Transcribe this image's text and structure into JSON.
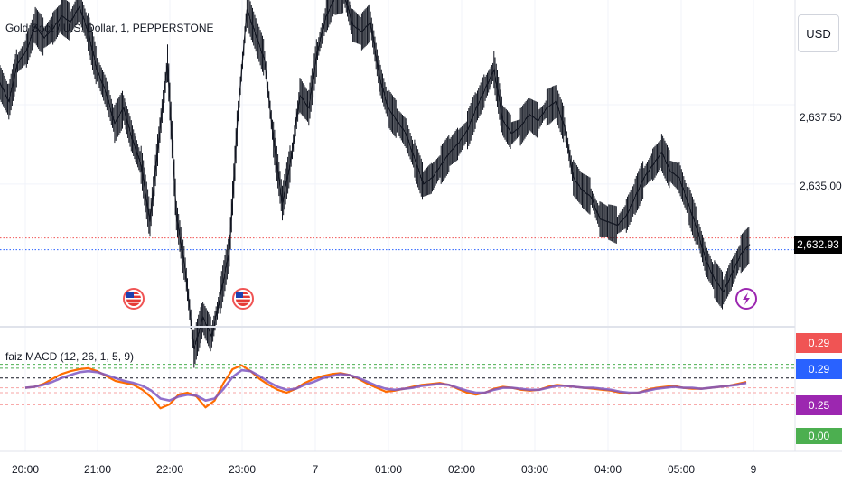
{
  "header": {
    "symbol_title": "Gold Spot / U.S. Dollar, 1, PEPPERSTONE",
    "currency_button": "USD"
  },
  "price_axis": {
    "labels": [
      "2,637.50",
      "2,635.00"
    ],
    "last_price": "2,632.93"
  },
  "indicator": {
    "title": "faiz MACD (12, 26, 1, 5, 9)",
    "badges": [
      {
        "text": "0.29",
        "color": "#f05454"
      },
      {
        "text": "0.29",
        "color": "#2962ff"
      },
      {
        "text": "0.25",
        "color": "#9c27b0"
      },
      {
        "text": "0.00",
        "color": "#4caf50"
      }
    ]
  },
  "time_axis": {
    "labels": [
      "20:00",
      "21:00",
      "22:00",
      "23:00",
      "7",
      "01:00",
      "02:00",
      "03:00",
      "04:00",
      "05:00",
      "9"
    ]
  },
  "chart_data": {
    "type": "line",
    "ylim": [
      2630.5,
      2640.8
    ],
    "price_ticks": [
      2637.5,
      2635.0
    ],
    "reference_lines": [
      {
        "value": 2633.3,
        "color": "#f05454"
      },
      {
        "value": 2632.93,
        "color": "#2962ff"
      }
    ],
    "series": [
      {
        "values": [
          2638.2,
          2637.6,
          2638.8,
          2639.2,
          2640.0,
          2639.6,
          2639.9,
          2640.3,
          2640.1,
          2640.6,
          2639.8,
          2638.6,
          2637.9,
          2636.9,
          2637.4,
          2636.4,
          2635.6,
          2633.8,
          2636.4,
          2638.8,
          2634.0,
          2632.3,
          2629.8,
          2630.8,
          2630.2,
          2631.5,
          2632.9,
          2637.3,
          2640.5,
          2639.7,
          2638.9,
          2636.4,
          2634.4,
          2635.8,
          2637.8,
          2637.4,
          2639.2,
          2640.3,
          2640.9,
          2641.0,
          2640.0,
          2639.8,
          2640.1,
          2638.4,
          2637.4,
          2637.0,
          2636.6,
          2635.8,
          2635.0,
          2635.2,
          2635.6,
          2636.0,
          2636.3,
          2636.7,
          2637.4,
          2638.0,
          2638.6,
          2637.0,
          2636.6,
          2636.8,
          2637.2,
          2637.0,
          2637.4,
          2637.6,
          2636.8,
          2635.2,
          2634.8,
          2634.6,
          2633.9,
          2633.8,
          2633.7,
          2634.0,
          2634.6,
          2635.2,
          2635.6,
          2636.0,
          2635.4,
          2635.2,
          2634.4,
          2633.6,
          2632.6,
          2632.0,
          2631.6,
          2632.2,
          2632.8,
          2633.1
        ],
        "color": "#131722"
      },
      {
        "name": "MACD",
        "values": [
          0.05,
          0.06,
          0.09,
          0.14,
          0.19,
          0.22,
          0.24,
          0.25,
          0.22,
          0.17,
          0.12,
          0.1,
          0.08,
          0.03,
          -0.05,
          -0.16,
          -0.12,
          -0.02,
          0.0,
          -0.04,
          -0.15,
          -0.08,
          0.1,
          0.24,
          0.28,
          0.22,
          0.14,
          0.08,
          0.03,
          0.0,
          0.04,
          0.1,
          0.14,
          0.17,
          0.19,
          0.2,
          0.18,
          0.14,
          0.09,
          0.05,
          0.01,
          0.02,
          0.04,
          0.06,
          0.08,
          0.09,
          0.1,
          0.08,
          0.04,
          0.0,
          -0.02,
          0.0,
          0.04,
          0.06,
          0.05,
          0.03,
          0.02,
          0.03,
          0.06,
          0.08,
          0.07,
          0.06,
          0.05,
          0.04,
          0.03,
          0.02,
          0.0,
          -0.01,
          0.0,
          0.03,
          0.05,
          0.06,
          0.07,
          0.05,
          0.04,
          0.04,
          0.05,
          0.06,
          0.07,
          0.09,
          0.11
        ],
        "color": "#ff6d00"
      },
      {
        "name": "Signal",
        "values": [
          0.05,
          0.06,
          0.08,
          0.11,
          0.15,
          0.18,
          0.21,
          0.22,
          0.21,
          0.18,
          0.15,
          0.12,
          0.1,
          0.07,
          0.02,
          -0.06,
          -0.08,
          -0.04,
          -0.02,
          -0.03,
          -0.08,
          -0.06,
          0.04,
          0.16,
          0.23,
          0.22,
          0.17,
          0.11,
          0.06,
          0.03,
          0.04,
          0.08,
          0.11,
          0.15,
          0.17,
          0.19,
          0.18,
          0.15,
          0.11,
          0.07,
          0.04,
          0.03,
          0.04,
          0.05,
          0.07,
          0.08,
          0.09,
          0.08,
          0.05,
          0.02,
          0.0,
          0.0,
          0.03,
          0.05,
          0.05,
          0.04,
          0.03,
          0.03,
          0.05,
          0.07,
          0.07,
          0.06,
          0.05,
          0.05,
          0.04,
          0.03,
          0.01,
          0.0,
          0.0,
          0.02,
          0.04,
          0.05,
          0.06,
          0.05,
          0.05,
          0.04,
          0.05,
          0.06,
          0.07,
          0.08,
          0.1
        ],
        "color": "#7e57c2"
      }
    ],
    "indicator_levels": [
      {
        "value": 0.29,
        "color": "#4caf50"
      },
      {
        "value": 0.25,
        "color": "#4caf50"
      },
      {
        "value": 0.15,
        "color": "#131722"
      },
      {
        "value": 0.05,
        "color": "#f7a4a4"
      },
      {
        "value": 0.0,
        "color": "#f7a4a4"
      },
      {
        "value": -0.12,
        "color": "#f05454"
      }
    ],
    "indicator_ylim": [
      -0.6,
      0.6
    ],
    "event_markers": [
      {
        "type": "us-flag-icon"
      },
      {
        "type": "us-flag-icon"
      },
      {
        "type": "lightning-icon"
      }
    ]
  }
}
